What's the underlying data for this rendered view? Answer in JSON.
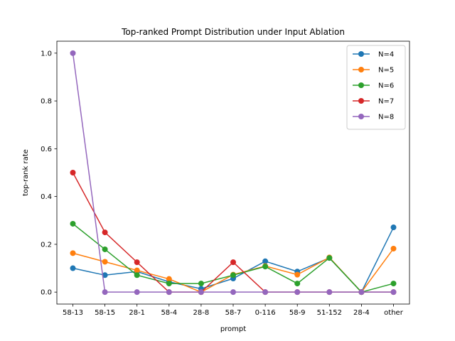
{
  "chart_data": {
    "type": "line",
    "title": "Top-ranked Prompt Distribution under Input Ablation",
    "xlabel": "prompt",
    "ylabel": "top-rank rate",
    "categories": [
      "58-13",
      "58-15",
      "28-1",
      "58-4",
      "28-8",
      "58-7",
      "0-116",
      "58-9",
      "51-152",
      "28-4",
      "other"
    ],
    "ylim": [
      -0.05,
      1.05
    ],
    "yticks": [
      0.0,
      0.2,
      0.4,
      0.6,
      0.8,
      1.0
    ],
    "ytick_labels": [
      "0.0",
      "0.2",
      "0.4",
      "0.6",
      "0.8",
      "1.0"
    ],
    "grid": false,
    "legend_position": "top-right",
    "series": [
      {
        "name": "N=4",
        "color": "#1f77b4",
        "values": [
          0.1,
          0.071,
          0.086,
          0.043,
          0.014,
          0.057,
          0.129,
          0.086,
          0.143,
          0.0,
          0.271
        ]
      },
      {
        "name": "N=5",
        "color": "#ff7f0e",
        "values": [
          0.163,
          0.127,
          0.091,
          0.055,
          0.0,
          0.073,
          0.109,
          0.073,
          0.145,
          0.0,
          0.182
        ]
      },
      {
        "name": "N=6",
        "color": "#2ca02c",
        "values": [
          0.286,
          0.179,
          0.071,
          0.036,
          0.036,
          0.071,
          0.107,
          0.036,
          0.143,
          0.0,
          0.036
        ]
      },
      {
        "name": "N=7",
        "color": "#d62728",
        "values": [
          0.5,
          0.25,
          0.125,
          0.0,
          0.0,
          0.125,
          0.0,
          0.0,
          0.0,
          0.0,
          0.0
        ]
      },
      {
        "name": "N=8",
        "color": "#9467bd",
        "values": [
          1.0,
          0.0,
          0.0,
          0.0,
          0.0,
          0.0,
          0.0,
          0.0,
          0.0,
          0.0,
          0.0
        ]
      }
    ]
  }
}
